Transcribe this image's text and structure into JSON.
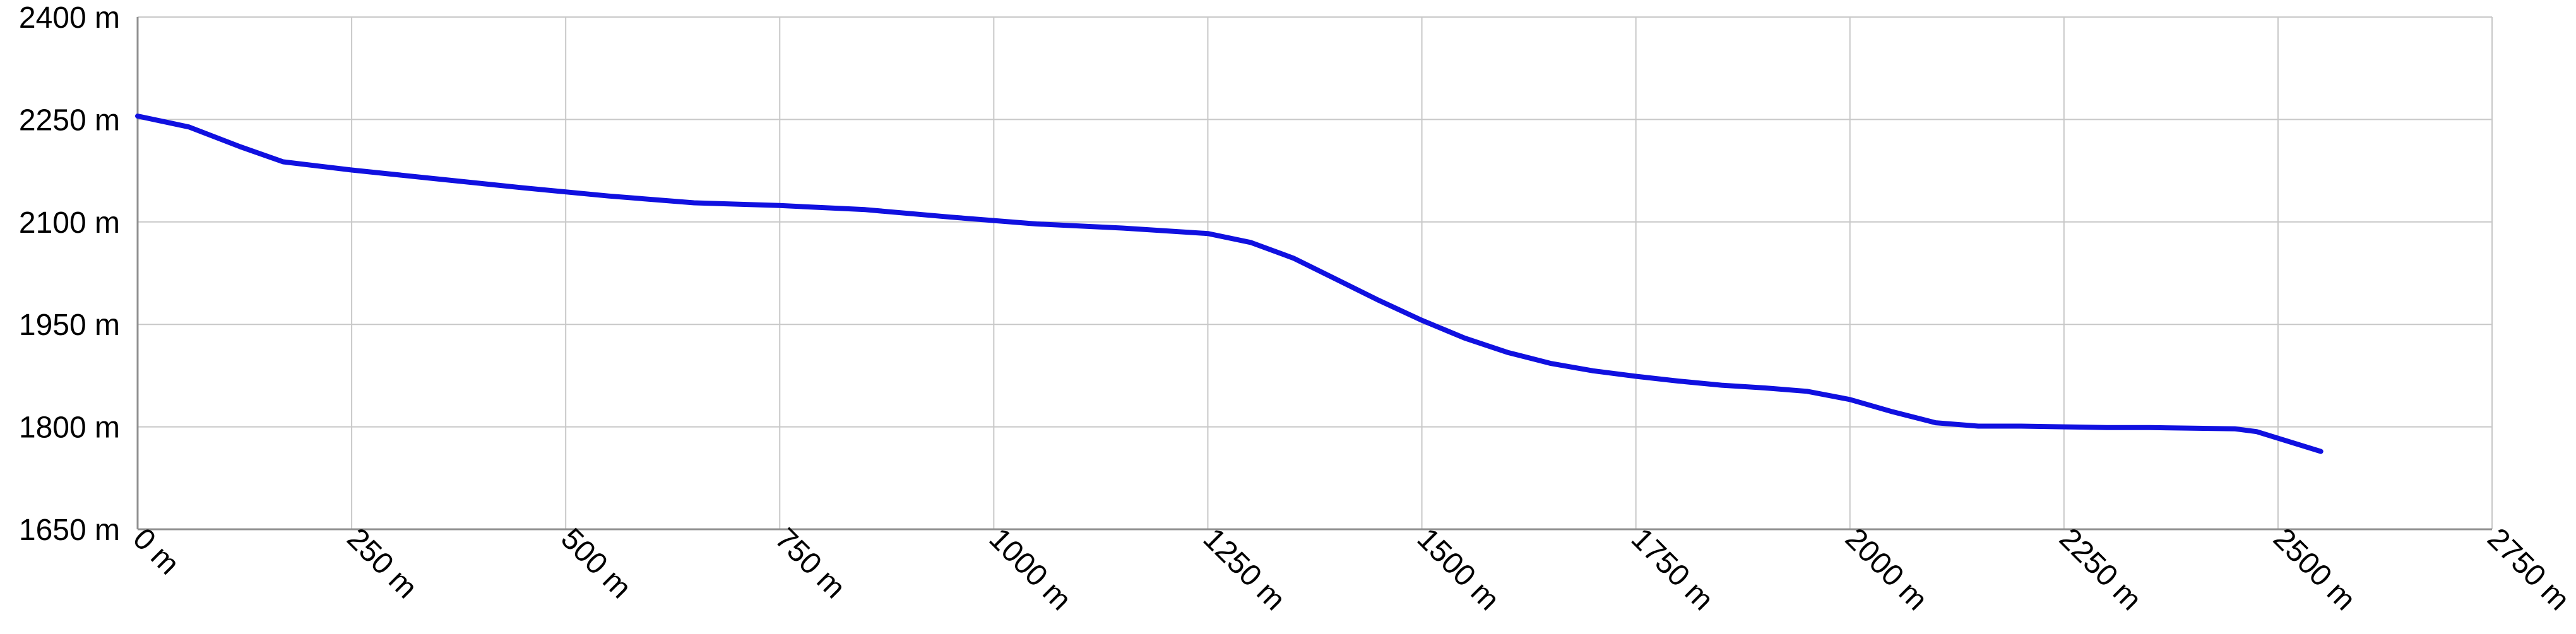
{
  "chart_data": {
    "type": "line",
    "title": "",
    "xlabel": "",
    "ylabel": "",
    "xlim": [
      0,
      2750
    ],
    "ylim": [
      1650,
      2400
    ],
    "x_ticks": [
      0,
      250,
      500,
      750,
      1000,
      1250,
      1500,
      1750,
      2000,
      2250,
      2500,
      2750
    ],
    "y_ticks": [
      1650,
      1800,
      1950,
      2100,
      2250,
      2400
    ],
    "x_tick_labels": [
      "0 m",
      "250 m",
      "500 m",
      "750 m",
      "1000 m",
      "1250 m",
      "1500 m",
      "1750 m",
      "2000 m",
      "2250 m",
      "2500 m",
      "2750 m"
    ],
    "y_tick_labels": [
      "1650 m",
      "1800 m",
      "1950 m",
      "2100 m",
      "2250 m",
      "2400 m"
    ],
    "grid": true,
    "legend": "none",
    "colors": {
      "line": "#1010e0",
      "grid": "#c8c8c8",
      "axis": "#909090"
    },
    "series": [
      {
        "x": [
          0,
          60,
          120,
          170,
          250,
          350,
          450,
          550,
          650,
          750,
          850,
          950,
          1050,
          1150,
          1250,
          1300,
          1350,
          1400,
          1450,
          1500,
          1550,
          1600,
          1650,
          1700,
          1750,
          1800,
          1850,
          1900,
          1950,
          2000,
          2050,
          2100,
          2150,
          2200,
          2250,
          2300,
          2350,
          2400,
          2450,
          2475,
          2550
        ],
        "y": [
          2255,
          2239,
          2210,
          2188,
          2176,
          2163,
          2150,
          2138,
          2128,
          2124,
          2118,
          2107,
          2097,
          2091,
          2083,
          2070,
          2047,
          2016,
          1985,
          1956,
          1930,
          1909,
          1893,
          1882,
          1874,
          1867,
          1861,
          1857,
          1852,
          1840,
          1822,
          1806,
          1801,
          1801,
          1800,
          1799,
          1799,
          1798,
          1797,
          1793,
          1764
        ]
      }
    ]
  }
}
